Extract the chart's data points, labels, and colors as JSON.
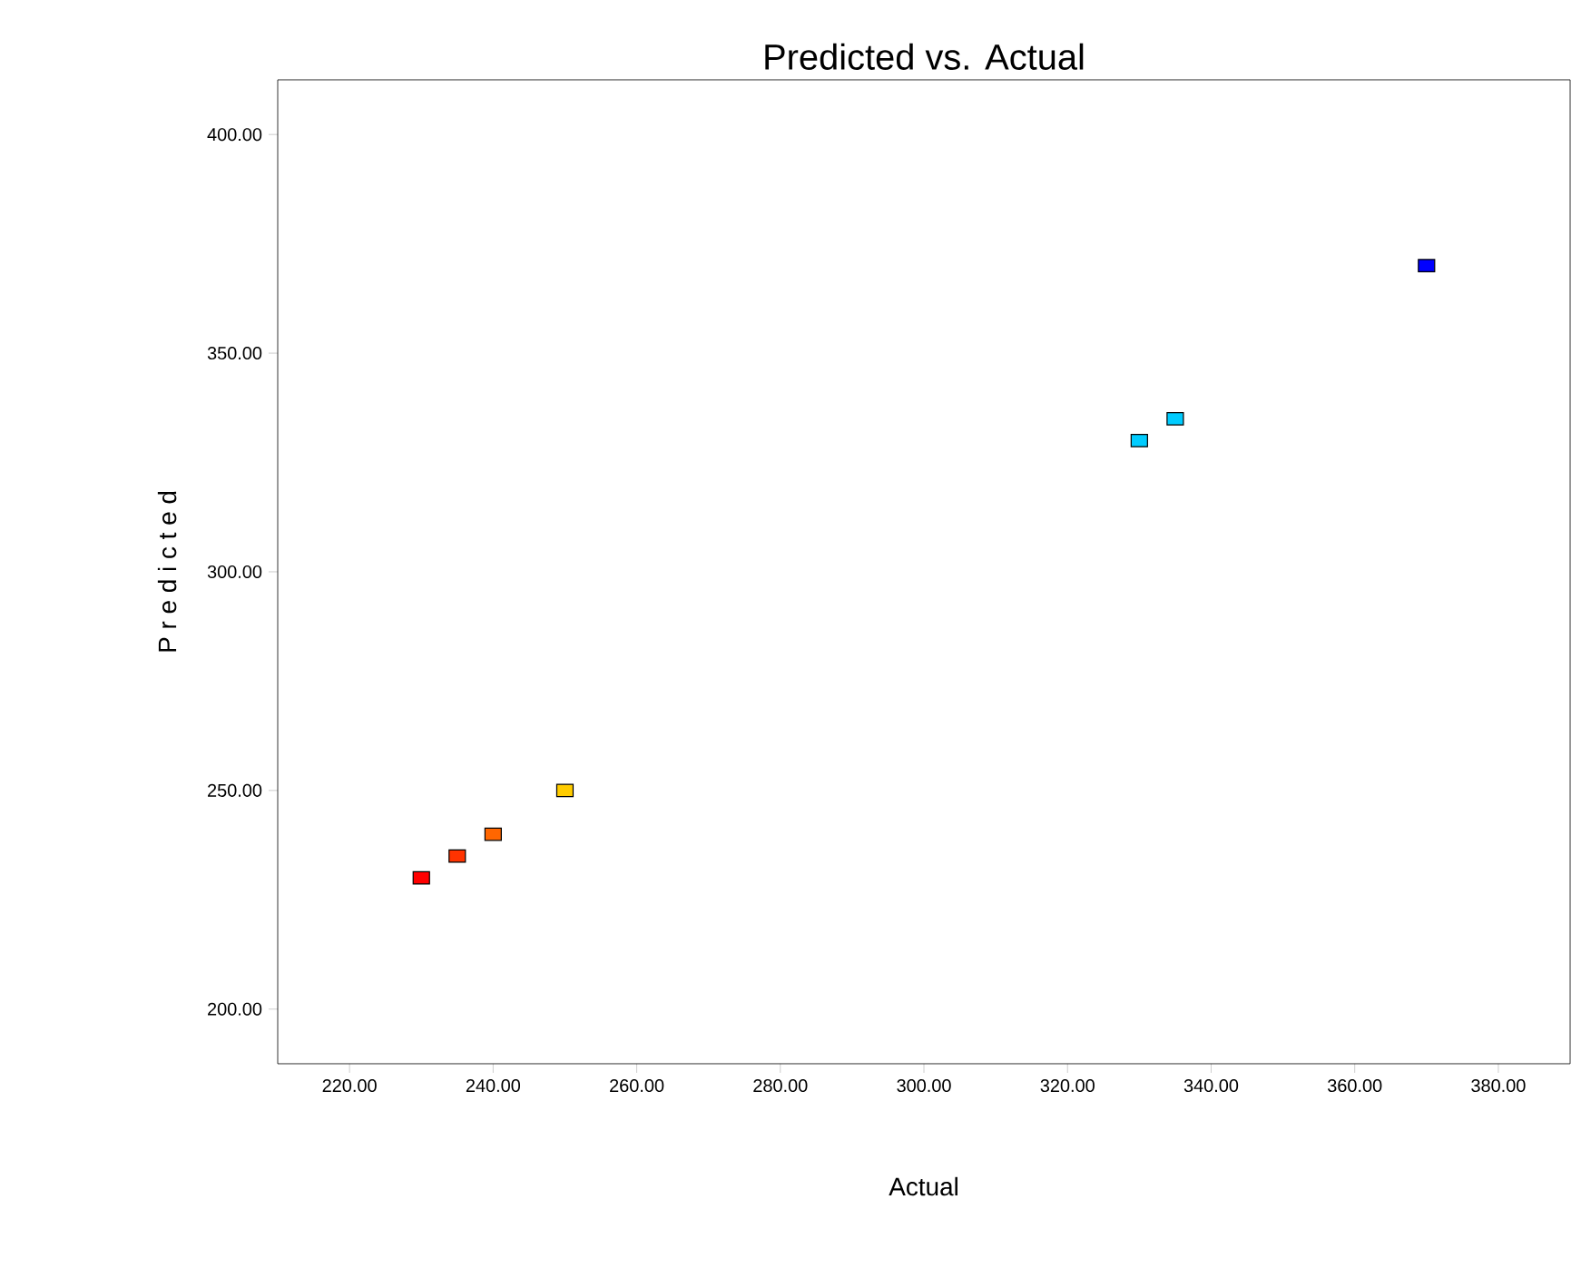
{
  "chart_data": {
    "type": "scatter",
    "title": "Predicted vs. Actual",
    "xlabel": "Actual",
    "ylabel": "P r e d i c t e d",
    "x": [
      230,
      235,
      240,
      250,
      330,
      335,
      370
    ],
    "values": [
      230,
      235,
      240,
      250,
      330,
      335,
      370
    ],
    "colors": [
      "#ff0000",
      "#ff3300",
      "#ff6600",
      "#ffcc00",
      "#00ccff",
      "#00ccff",
      "#0000ff"
    ],
    "marker": "square",
    "xlim": [
      210,
      390
    ],
    "ylim": [
      187.5,
      412.5
    ],
    "xticks": [
      {
        "value": 220,
        "label": "220.00"
      },
      {
        "value": 240,
        "label": "240.00"
      },
      {
        "value": 260,
        "label": "260.00"
      },
      {
        "value": 280,
        "label": "280.00"
      },
      {
        "value": 300,
        "label": "300.00"
      },
      {
        "value": 320,
        "label": "320.00"
      },
      {
        "value": 340,
        "label": "340.00"
      },
      {
        "value": 360,
        "label": "360.00"
      },
      {
        "value": 380,
        "label": "380.00"
      }
    ],
    "yticks": [
      {
        "value": 200,
        "label": "200.00"
      },
      {
        "value": 250,
        "label": "250.00"
      },
      {
        "value": 300,
        "label": "300.00"
      },
      {
        "value": 350,
        "label": "350.00"
      },
      {
        "value": 400,
        "label": "400.00"
      }
    ],
    "grid": false
  }
}
